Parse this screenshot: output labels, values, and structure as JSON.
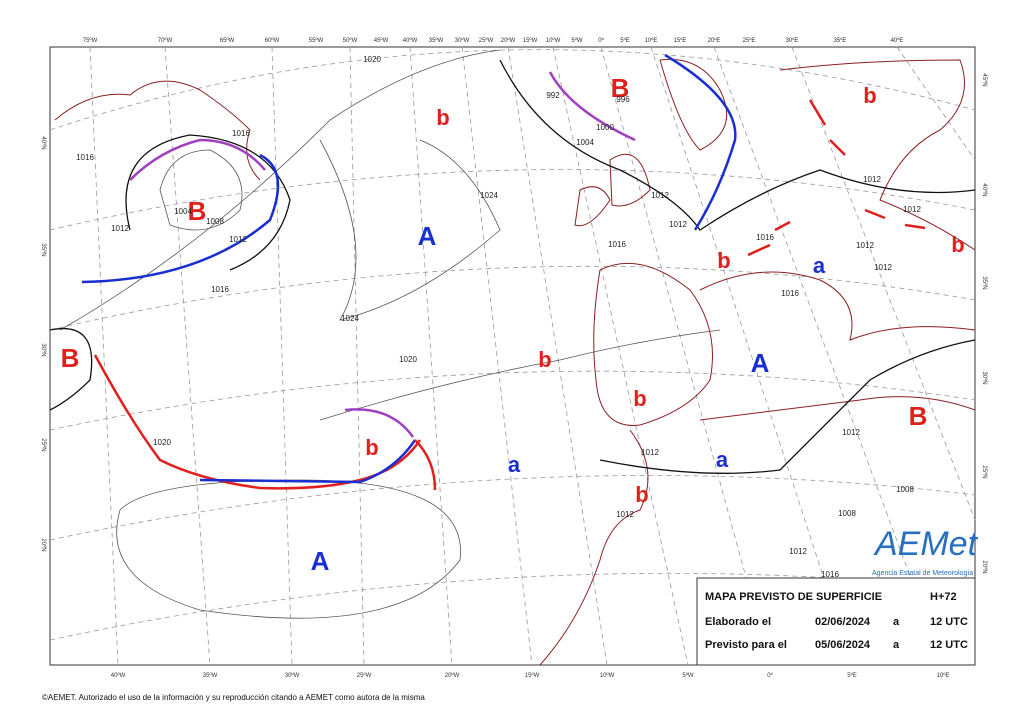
{
  "map": {
    "top_lon_labels": [
      "75ºW",
      "70ºW",
      "65ºW",
      "60ºW",
      "55ºW",
      "50ºW",
      "45ºW",
      "40ºW",
      "35ºW",
      "30ºW",
      "25ºW",
      "20ºW",
      "15ºW",
      "10ºW",
      "5ºW",
      "0º",
      "5ºE",
      "10ºE",
      "15ºE",
      "20ºE",
      "25ºE",
      "30ºE",
      "35ºE",
      "40ºE"
    ],
    "bottom_lon_labels": [
      "40ºW",
      "35ºW",
      "30ºW",
      "25ºW",
      "20ºW",
      "15ºW",
      "10ºW",
      "5ºW",
      "0º",
      "5ºE",
      "10ºE"
    ],
    "left_lat_labels": [
      "40ºN",
      "35ºN",
      "30ºN",
      "25ºN",
      "20ºN"
    ],
    "right_lat_labels": [
      "45ºN",
      "40ºN",
      "35ºN",
      "30ºN",
      "25ºN",
      "20ºN"
    ],
    "pressure_centers": [
      {
        "label": "B",
        "color": "#e0201c"
      },
      {
        "label": "B",
        "color": "#e0201c"
      },
      {
        "label": "B",
        "color": "#e0201c"
      },
      {
        "label": "B",
        "color": "#e0201c"
      },
      {
        "label": "b",
        "color": "#e0201c"
      },
      {
        "label": "b",
        "color": "#e0201c"
      },
      {
        "label": "b",
        "color": "#e0201c"
      },
      {
        "label": "b",
        "color": "#e0201c"
      },
      {
        "label": "b",
        "color": "#e0201c"
      },
      {
        "label": "b",
        "color": "#e0201c"
      },
      {
        "label": "b",
        "color": "#e0201c"
      },
      {
        "label": "b",
        "color": "#e0201c"
      },
      {
        "label": "A",
        "color": "#1a2fd0"
      },
      {
        "label": "A",
        "color": "#1a2fd0"
      },
      {
        "label": "A",
        "color": "#1a2fd0"
      },
      {
        "label": "a",
        "color": "#1a2fd0"
      },
      {
        "label": "a",
        "color": "#1a2fd0"
      },
      {
        "label": "a",
        "color": "#1a2fd0"
      }
    ],
    "isobar_labels": [
      "1020",
      "1016",
      "1016",
      "1012",
      "1008",
      "1004",
      "1012",
      "1016",
      "1024",
      "1024",
      "1020",
      "1020",
      "992",
      "996",
      "1000",
      "1004",
      "1012",
      "1012",
      "1016",
      "1016",
      "1012",
      "1012",
      "1012",
      "1012",
      "1016",
      "1012",
      "1012",
      "1008",
      "1008",
      "1012",
      "1012",
      "1016"
    ]
  },
  "info_box": {
    "title": "MAPA PREVISTO DE SUPERFICIE",
    "range": "H+72",
    "rows": [
      [
        "Elaborado el",
        "02/06/2024",
        "a",
        "12 UTC"
      ],
      [
        "Previsto para el",
        "05/06/2024",
        "a",
        "12 UTC"
      ]
    ]
  },
  "logo": {
    "name": "AEMet",
    "subtitle": "Agencia Estatal de Meteorología"
  },
  "copyright": "©AEMET. Autorizado el uso de la información y su reproducción citando a AEMET como autora de la misma"
}
